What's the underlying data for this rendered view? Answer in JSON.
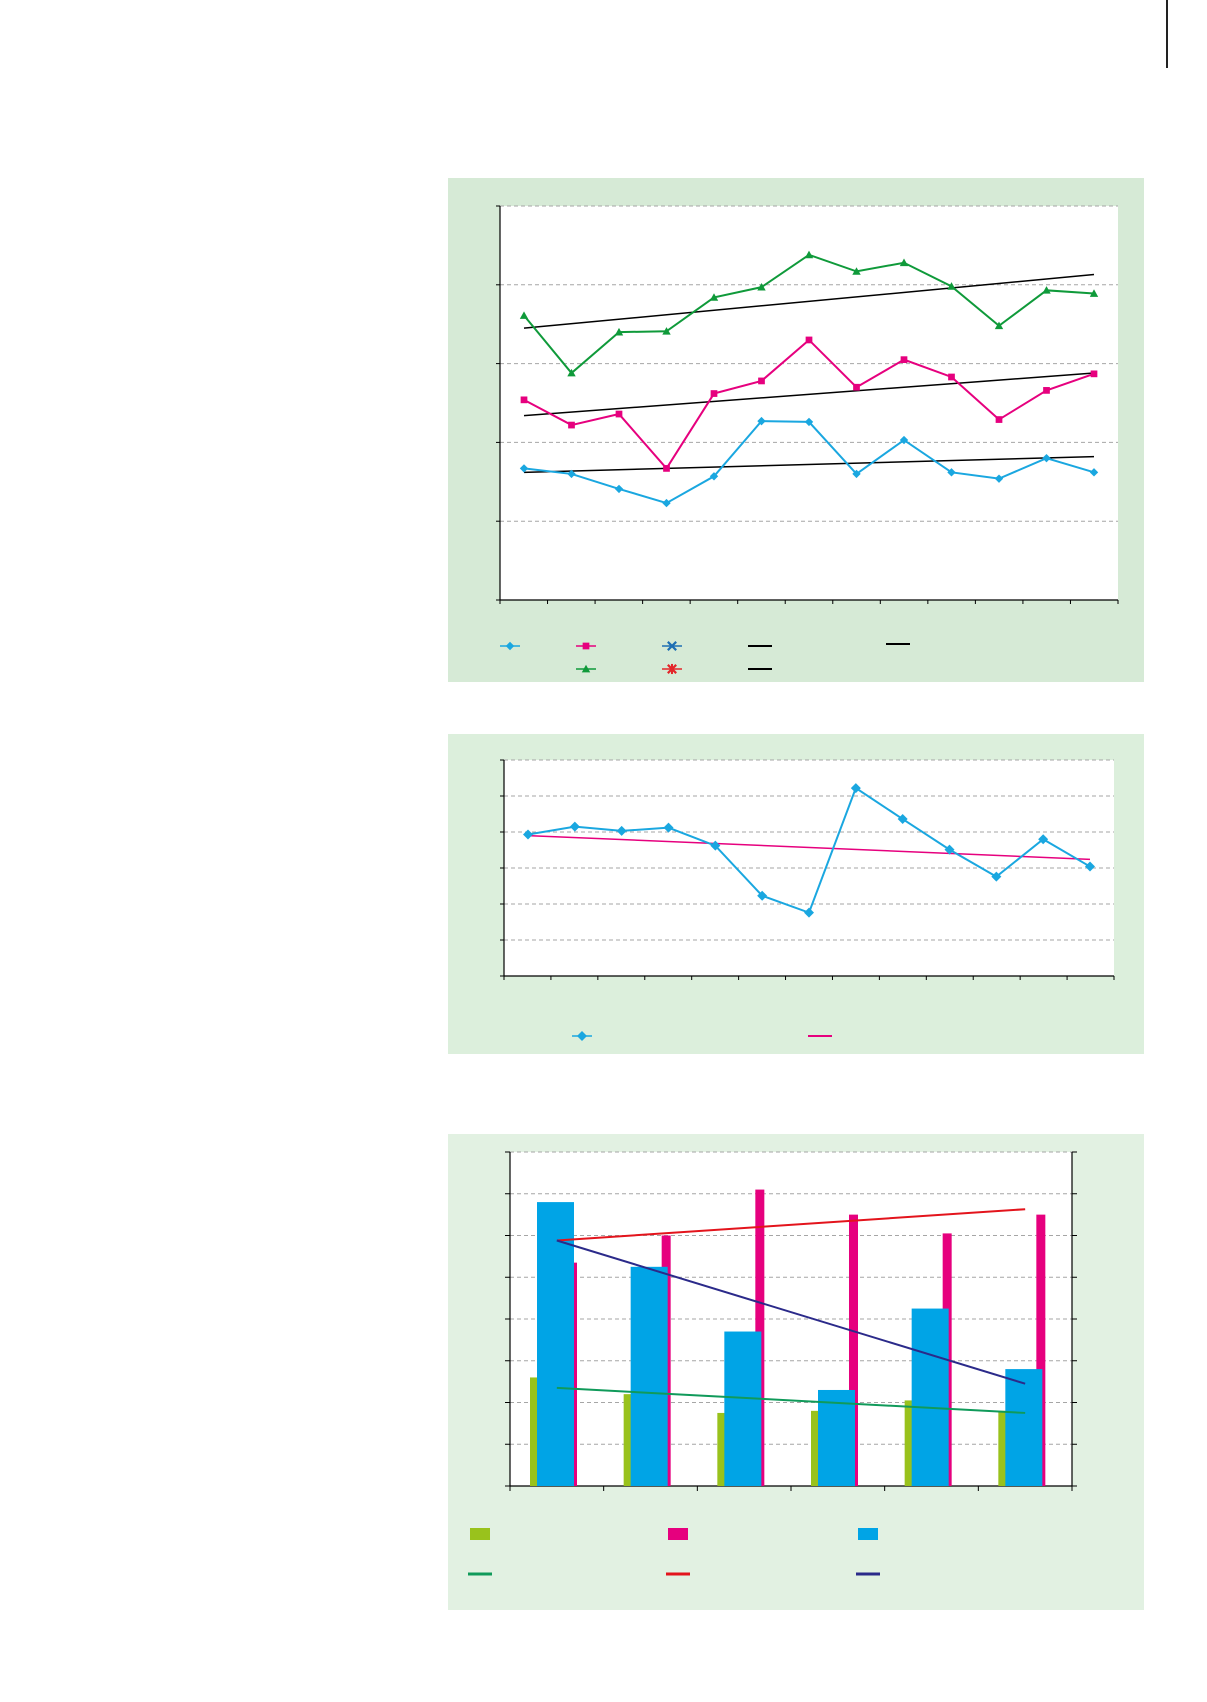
{
  "colors": {
    "blue": "#1aa7e0",
    "magenta": "#e6007e",
    "green": "#0f9a3a",
    "navy": "#1e6fb3",
    "red": "#e3262a",
    "trend_black": "#000000",
    "lime": "#99c21c",
    "cyan_bar": "#00a4e6",
    "teal_trend": "#109a5a",
    "red_trend": "#e3141c",
    "navy_trend": "#2b2a8a",
    "grid": "#a6a6a6"
  },
  "chart_data": [
    {
      "type": "line",
      "title": "",
      "xlabel": "",
      "ylabel": "",
      "grid": true,
      "ylim": [
        0,
        5
      ],
      "x": [
        1,
        2,
        3,
        4,
        5,
        6,
        7,
        8,
        9,
        10,
        11,
        12,
        13
      ],
      "series": [
        {
          "marker": "diamond",
          "color": "blue",
          "values": [
            1.67,
            1.6,
            1.41,
            1.23,
            1.57,
            2.27,
            2.26,
            1.6,
            2.03,
            1.62,
            1.54,
            1.8,
            1.62
          ]
        },
        {
          "marker": "square",
          "color": "magenta",
          "values": [
            2.54,
            2.22,
            2.36,
            1.67,
            2.62,
            2.78,
            3.3,
            2.7,
            3.05,
            2.83,
            2.29,
            2.66,
            2.87
          ]
        },
        {
          "marker": "triangle",
          "color": "green",
          "values": [
            3.61,
            2.88,
            3.4,
            3.41,
            3.84,
            3.97,
            4.38,
            4.17,
            4.28,
            3.98,
            3.48,
            3.93,
            3.89
          ]
        }
      ],
      "trendlines": [
        {
          "color": "trend_black",
          "from": [
            1,
            1.62
          ],
          "to": [
            13,
            1.82
          ]
        },
        {
          "color": "trend_black",
          "from": [
            1,
            2.34
          ],
          "to": [
            13,
            2.88
          ]
        },
        {
          "color": "trend_black",
          "from": [
            1,
            3.45
          ],
          "to": [
            13,
            4.13
          ]
        }
      ],
      "legend": {
        "placement": "bottom",
        "entries": [
          {
            "marker": "diamond",
            "color": "blue"
          },
          {
            "marker": "square",
            "color": "magenta"
          },
          {
            "marker": "cross",
            "color": "navy"
          },
          {
            "marker": "line",
            "color": "trend_black"
          },
          {
            "marker": "line",
            "color": "trend_black"
          },
          {
            "marker": "triangle",
            "color": "green"
          },
          {
            "marker": "star",
            "color": "red"
          },
          {
            "marker": "line",
            "color": "trend_black"
          }
        ]
      }
    },
    {
      "type": "line",
      "title": "",
      "xlabel": "",
      "ylabel": "",
      "grid": true,
      "ylim": [
        0,
        6
      ],
      "x": [
        1,
        2,
        3,
        4,
        5,
        6,
        7,
        8,
        9,
        10,
        11,
        12,
        13
      ],
      "series": [
        {
          "marker": "diamond",
          "color": "blue",
          "values": [
            3.93,
            4.15,
            4.03,
            4.12,
            3.62,
            2.23,
            1.76,
            5.22,
            4.36,
            3.51,
            2.76,
            3.8,
            3.04
          ]
        }
      ],
      "trendlines": [
        {
          "color": "magenta",
          "from": [
            1,
            3.9
          ],
          "to": [
            13,
            3.24
          ]
        }
      ],
      "legend": {
        "placement": "bottom",
        "entries": [
          {
            "marker": "diamond",
            "color": "blue"
          },
          {
            "marker": "line",
            "color": "magenta"
          }
        ]
      }
    },
    {
      "type": "bar",
      "title": "",
      "xlabel": "",
      "ylabel": "",
      "grid": true,
      "ylim": [
        0,
        8
      ],
      "categories": [
        "",
        "",
        "",
        "",
        "",
        ""
      ],
      "series": [
        {
          "color": "lime",
          "values": [
            2.6,
            2.2,
            1.75,
            1.8,
            2.05,
            1.8
          ]
        },
        {
          "color": "magenta",
          "values": [
            5.35,
            6.0,
            7.1,
            6.5,
            6.05,
            6.5
          ]
        },
        {
          "color": "cyan_bar",
          "values": [
            6.8,
            5.25,
            3.7,
            2.3,
            4.25,
            2.8
          ]
        }
      ],
      "trendlines": [
        {
          "color": "teal_trend",
          "from": [
            0,
            2.35
          ],
          "to": [
            5,
            1.75
          ]
        },
        {
          "color": "red_trend",
          "from": [
            0,
            5.88
          ],
          "to": [
            5,
            6.63
          ]
        },
        {
          "color": "navy_trend",
          "from": [
            0,
            5.88
          ],
          "to": [
            5,
            2.45
          ]
        }
      ],
      "legend": {
        "placement": "bottom",
        "entries": [
          {
            "marker": "box",
            "color": "lime"
          },
          {
            "marker": "box",
            "color": "magenta"
          },
          {
            "marker": "box",
            "color": "cyan_bar"
          },
          {
            "marker": "line",
            "color": "teal_trend"
          },
          {
            "marker": "line",
            "color": "red_trend"
          },
          {
            "marker": "line",
            "color": "navy_trend"
          }
        ]
      }
    }
  ]
}
